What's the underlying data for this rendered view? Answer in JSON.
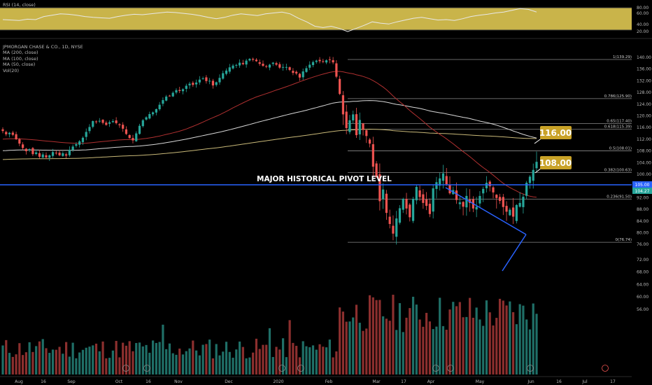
{
  "rsi_panel": {
    "label": "RSI (14, close)",
    "levels": [
      "80.00",
      "60.00",
      "40.00",
      "20.00"
    ],
    "band_color": "#c9b44a"
  },
  "legend": {
    "symbol": "JPMORGAN CHASE & CO., 1D, NYSE",
    "ma200": "MA (200, close)",
    "ma100": "MA (100, close)",
    "ma50": "MA (50, close)",
    "vol": "Vol(20)"
  },
  "annotations": {
    "pivot_label": "MAJOR HISTORICAL PIVOT LEVEL",
    "target_upper": "116.00",
    "target_lower": "108.00"
  },
  "price_badges": {
    "pivot": "105.00",
    "last": "104.27"
  },
  "chart_data": {
    "type": "candlestick",
    "symbol": "JPMORGAN CHASE & CO.",
    "interval": "1D",
    "exchange": "NYSE",
    "y_ticks": [
      140,
      136,
      132,
      128,
      124,
      120,
      116,
      112,
      108,
      104,
      100,
      96,
      92,
      88,
      84,
      80,
      76,
      72,
      68,
      64,
      60,
      56
    ],
    "y_tick_labels": [
      "140.00",
      "136.00",
      "132.00",
      "128.00",
      "124.00",
      "120.00",
      "116.00",
      "112.00",
      "108.00",
      "104.00",
      "100.00",
      "96.00",
      "92.00",
      "88.00",
      "84.00",
      "80.00",
      "76.00",
      "72.00",
      "68.00",
      "64.00",
      "60.00",
      "56.00"
    ],
    "x_ticks": [
      "Aug",
      "16",
      "Sep",
      "Oct",
      "16",
      "Nov",
      "Dec",
      "2020",
      "Feb",
      "Mar",
      "17",
      "Apr",
      "May",
      "Jun",
      "16",
      "Jul",
      "17"
    ],
    "fib_levels": [
      {
        "ratio": "1",
        "price": 139.29,
        "label": "1(139.29)"
      },
      {
        "ratio": "0.786",
        "price": 125.9,
        "label": "0.786(125.90)"
      },
      {
        "ratio": "0.65",
        "price": 117.4,
        "label": "0.65(117.40)"
      },
      {
        "ratio": "0.618",
        "price": 115.39,
        "label": "0.618(115.39)"
      },
      {
        "ratio": "0.5",
        "price": 108.01,
        "label": "0.5(108.01)"
      },
      {
        "ratio": "0.382",
        "price": 100.63,
        "label": "0.382(100.63)"
      },
      {
        "ratio": "0.236",
        "price": 91.5,
        "label": "0.236(91.50)"
      },
      {
        "ratio": "0",
        "price": 76.74,
        "label": "0(76.74)"
      }
    ],
    "pivot_level": 105.0,
    "last_price": 104.27,
    "up_color": "#26a69a",
    "down_color": "#ef5350",
    "ma_colors": {
      "ma200": "#c8b878",
      "ma100": "#d8d8d8",
      "ma50": "#b03030"
    },
    "trendline_color": "#2962ff",
    "pivot_line_color": "#2962ff",
    "closes": [
      114.8,
      113.7,
      114.2,
      113.5,
      112.0,
      110.5,
      109.0,
      107.9,
      108.6,
      106.9,
      107.5,
      106.0,
      106.8,
      105.8,
      106.5,
      107.6,
      107.2,
      106.5,
      107.2,
      106.4,
      108.4,
      109.5,
      110.3,
      111.3,
      112.5,
      114.5,
      116.2,
      118.2,
      117.9,
      118.3,
      117.6,
      116.9,
      117.8,
      118.2,
      117.5,
      116.8,
      115.6,
      113.8,
      112.4,
      111.6,
      114.0,
      116.6,
      118.5,
      119.5,
      120.6,
      121.2,
      122.3,
      123.8,
      125.4,
      126.6,
      126.9,
      127.9,
      128.8,
      128.5,
      129.1,
      130.3,
      131.0,
      130.6,
      131.4,
      132.4,
      132.8,
      131.9,
      132.0,
      130.4,
      131.5,
      133.0,
      134.6,
      135.5,
      136.6,
      137.2,
      137.4,
      138.2,
      137.7,
      138.9,
      139.5,
      139.2,
      138.7,
      137.8,
      137.1,
      136.9,
      137.5,
      138.2,
      137.5,
      136.5,
      136.7,
      136.7,
      135.7,
      134.7,
      134.5,
      133.1,
      135.2,
      136.3,
      137.5,
      138.4,
      138.9,
      138.7,
      138.6,
      139.0,
      139.1,
      138.3,
      133.4,
      127.5,
      120.5,
      115.8,
      118.5,
      120.5,
      113.4,
      118.6,
      115.2,
      113.1,
      110.5,
      102.6,
      99.0,
      90.8,
      94.8,
      86.8,
      83.0,
      79.7,
      84.9,
      88.4,
      91.6,
      88.3,
      85.3,
      91.6,
      95.7,
      92.2,
      90.2,
      89.2,
      86.4,
      95.2,
      97.3,
      98.6,
      100.3,
      96.6,
      93.5,
      94.6,
      91.2,
      90.4,
      88.9,
      92.6,
      90.2,
      88.3,
      88.9,
      92.6,
      95.0,
      97.1,
      95.9,
      93.8,
      91.9,
      90.9,
      88.8,
      87.2,
      87.9,
      85.5,
      89.5,
      90.2,
      92.3,
      97.1,
      99.2,
      101.5,
      104.27
    ],
    "rsi_values": [
      45,
      44,
      43,
      46,
      45,
      52,
      55,
      58,
      57,
      55,
      52,
      50,
      49,
      48,
      52,
      55,
      57,
      56,
      58,
      60,
      62,
      61,
      59,
      57,
      54,
      50,
      47,
      50,
      55,
      58,
      56,
      54,
      58,
      60,
      62,
      58,
      48,
      40,
      30,
      27,
      30,
      25,
      18,
      25,
      32,
      40,
      37,
      35,
      40,
      44,
      48,
      50,
      47,
      44,
      45,
      43,
      47,
      52,
      55,
      57,
      60,
      62,
      66,
      70,
      68,
      62
    ],
    "volume_max_label": "76.00"
  }
}
